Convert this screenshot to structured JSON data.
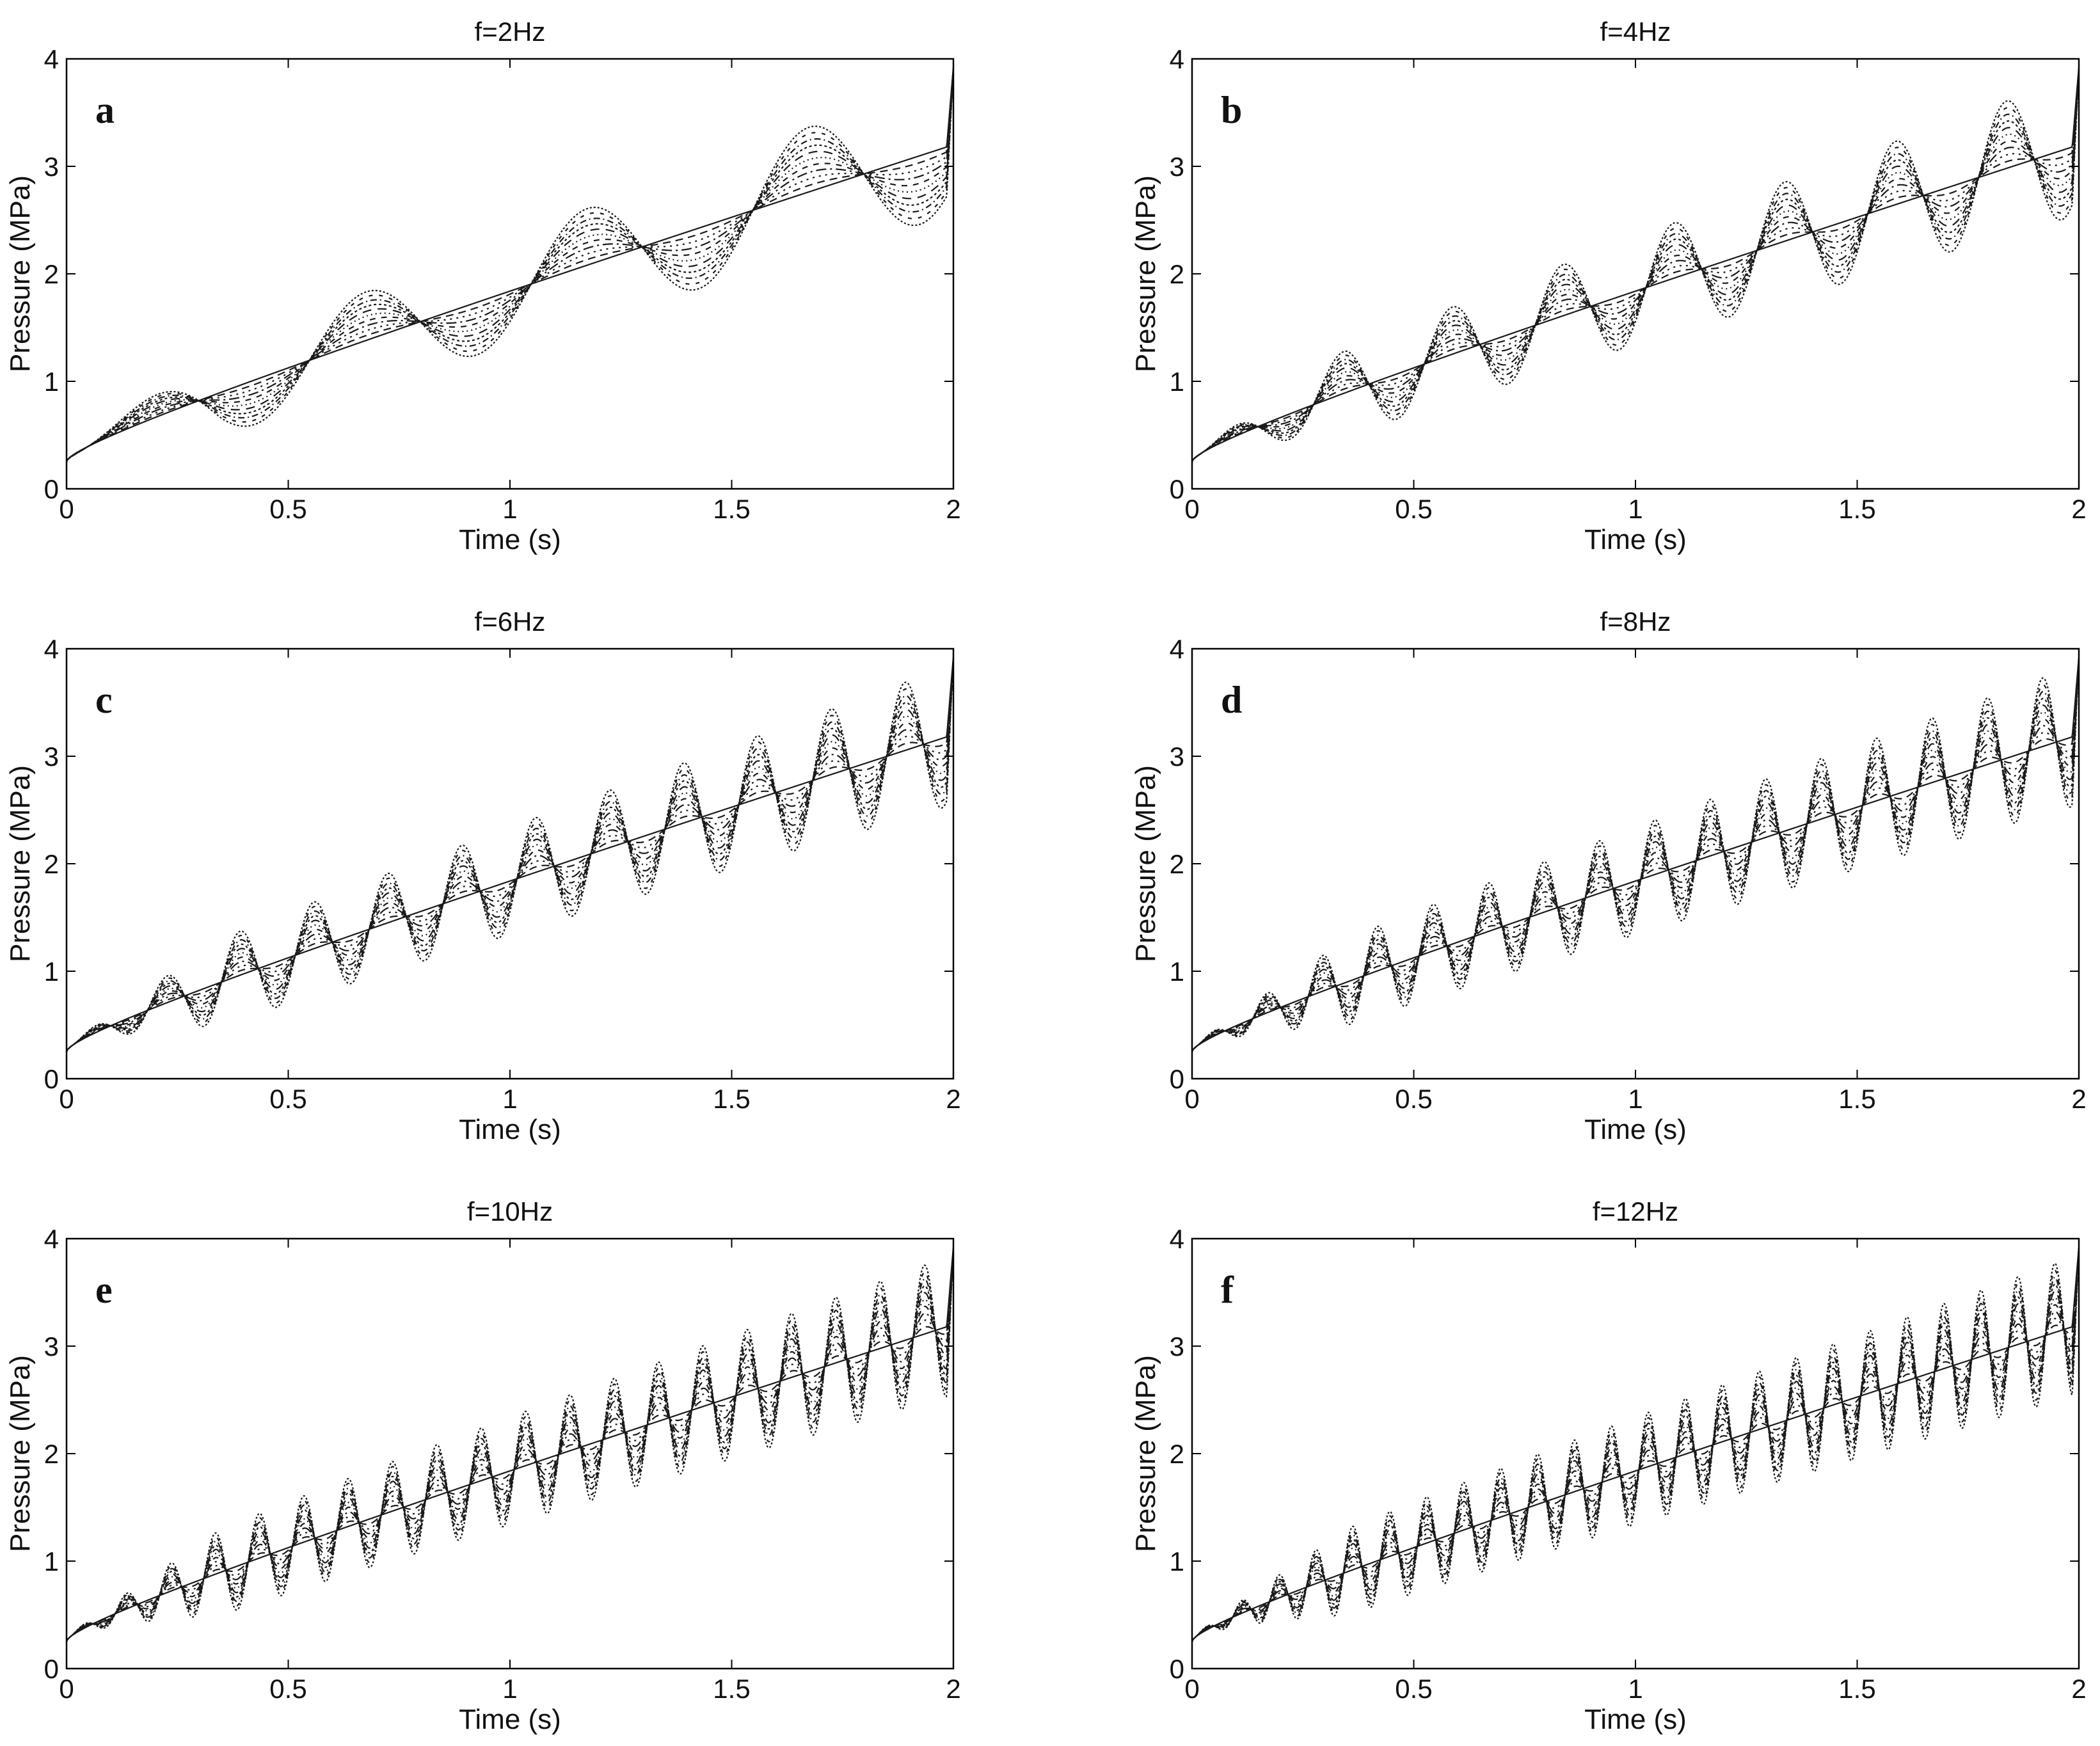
{
  "figure": {
    "description_free": true
  },
  "chart_data": [
    {
      "type": "line",
      "panel": "a",
      "title": "f=2Hz",
      "frequency_hz": 2,
      "xlabel": "Time (s)",
      "ylabel": "Pressure (MPa)",
      "xlim": [
        0,
        2
      ],
      "ylim": [
        0,
        4
      ],
      "xticks": [
        "0",
        "0.5",
        "1",
        "1.5",
        "2"
      ],
      "yticks": [
        "0",
        "1",
        "2",
        "3",
        "4"
      ],
      "baseline_start": 0.25,
      "baseline_end": 3.2,
      "oscillation_amplitudes": [
        0,
        0.1,
        0.2,
        0.3,
        0.4,
        0.5,
        0.6,
        0.7,
        0.8,
        0.9,
        1.0
      ],
      "peak_at_t2": 4.0
    },
    {
      "type": "line",
      "panel": "b",
      "title": "f=4Hz",
      "frequency_hz": 4,
      "xlabel": "Time (s)",
      "ylabel": "Pressure (MPa)",
      "xlim": [
        0,
        2
      ],
      "ylim": [
        0,
        4
      ],
      "xticks": [
        "0",
        "0.5",
        "1",
        "1.5",
        "2"
      ],
      "yticks": [
        "0",
        "1",
        "2",
        "3",
        "4"
      ],
      "baseline_start": 0.25,
      "baseline_end": 3.2,
      "oscillation_amplitudes": [
        0,
        0.1,
        0.2,
        0.3,
        0.4,
        0.5,
        0.6,
        0.7,
        0.8,
        0.9,
        1.0
      ],
      "peak_at_t2": 4.0
    },
    {
      "type": "line",
      "panel": "c",
      "title": "f=6Hz",
      "frequency_hz": 6,
      "xlabel": "Time (s)",
      "ylabel": "Pressure (MPa)",
      "xlim": [
        0,
        2
      ],
      "ylim": [
        0,
        4
      ],
      "xticks": [
        "0",
        "0.5",
        "1",
        "1.5",
        "2"
      ],
      "yticks": [
        "0",
        "1",
        "2",
        "3",
        "4"
      ],
      "baseline_start": 0.25,
      "baseline_end": 3.2,
      "oscillation_amplitudes": [
        0,
        0.1,
        0.2,
        0.3,
        0.4,
        0.5,
        0.6,
        0.7,
        0.8,
        0.9,
        1.0
      ],
      "peak_at_t2": 4.0
    },
    {
      "type": "line",
      "panel": "d",
      "title": "f=8Hz",
      "frequency_hz": 8,
      "xlabel": "Time (s)",
      "ylabel": "Pressure (MPa)",
      "xlim": [
        0,
        2
      ],
      "ylim": [
        0,
        4
      ],
      "xticks": [
        "0",
        "0.5",
        "1",
        "1.5",
        "2"
      ],
      "yticks": [
        "0",
        "1",
        "2",
        "3",
        "4"
      ],
      "baseline_start": 0.25,
      "baseline_end": 3.2,
      "oscillation_amplitudes": [
        0,
        0.1,
        0.2,
        0.3,
        0.4,
        0.5,
        0.6,
        0.7,
        0.8,
        0.9,
        1.0
      ],
      "peak_at_t2": 4.0
    },
    {
      "type": "line",
      "panel": "e",
      "title": "f=10Hz",
      "frequency_hz": 10,
      "xlabel": "Time (s)",
      "ylabel": "Pressure (MPa)",
      "xlim": [
        0,
        2
      ],
      "ylim": [
        0,
        4
      ],
      "xticks": [
        "0",
        "0.5",
        "1",
        "1.5",
        "2"
      ],
      "yticks": [
        "0",
        "1",
        "2",
        "3",
        "4"
      ],
      "baseline_start": 0.25,
      "baseline_end": 3.2,
      "oscillation_amplitudes": [
        0,
        0.1,
        0.2,
        0.3,
        0.4,
        0.5,
        0.6,
        0.7,
        0.8,
        0.9,
        1.0
      ],
      "peak_at_t2": 4.0
    },
    {
      "type": "line",
      "panel": "f",
      "title": "f=12Hz",
      "frequency_hz": 12,
      "xlabel": "Time (s)",
      "ylabel": "Pressure (MPa)",
      "xlim": [
        0,
        2
      ],
      "ylim": [
        0,
        4
      ],
      "xticks": [
        "0",
        "0.5",
        "1",
        "1.5",
        "2"
      ],
      "yticks": [
        "0",
        "1",
        "2",
        "3",
        "4"
      ],
      "baseline_start": 0.25,
      "baseline_end": 3.2,
      "oscillation_amplitudes": [
        0,
        0.1,
        0.2,
        0.3,
        0.4,
        0.5,
        0.6,
        0.7,
        0.8,
        0.9,
        1.0
      ],
      "peak_at_t2": 4.0
    }
  ]
}
